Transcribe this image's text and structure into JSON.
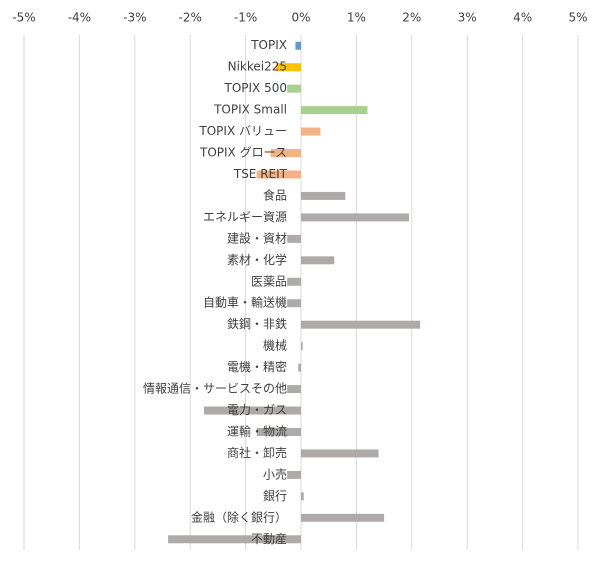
{
  "chart_data": {
    "type": "bar",
    "orientation": "horizontal",
    "categories": [
      "TOPIX",
      "Nikkei225",
      "TOPIX 500",
      "TOPIX Small",
      "TOPIX バリュー",
      "TOPIX グロース",
      "TSE REIT",
      "食品",
      "エネルギー資源",
      "建設・資材",
      "素材・化学",
      "医薬品",
      "自動車・輸送機",
      "鉄鋼・非鉄",
      "機械",
      "電機・精密",
      "情報通信・サービスその他",
      "電力・ガス",
      "運輸・物流",
      "商社・卸売",
      "小売",
      "銀行",
      "金融（除く銀行）",
      "不動産"
    ],
    "values": [
      -0.1,
      -0.45,
      -0.25,
      1.2,
      0.35,
      -0.55,
      -0.8,
      0.8,
      1.95,
      -0.25,
      0.6,
      -0.25,
      -0.25,
      2.15,
      0.03,
      -0.05,
      -0.25,
      -1.75,
      -0.8,
      1.4,
      -0.25,
      0.05,
      1.5,
      -2.4
    ],
    "colors": [
      "#5b9bd5",
      "#ffc000",
      "#a9d18e",
      "#a9d18e",
      "#f4b183",
      "#f4b183",
      "#f4b183",
      "#aeaaaa",
      "#aeaaaa",
      "#aeaaaa",
      "#aeaaaa",
      "#aeaaaa",
      "#aeaaaa",
      "#aeaaaa",
      "#aeaaaa",
      "#aeaaaa",
      "#aeaaaa",
      "#aeaaaa",
      "#aeaaaa",
      "#aeaaaa",
      "#aeaaaa",
      "#aeaaaa",
      "#aeaaaa",
      "#aeaaaa"
    ],
    "xlim": [
      -5,
      5
    ],
    "xticks": [
      {
        "value": -5,
        "label": "-5%"
      },
      {
        "value": -4,
        "label": "-4%"
      },
      {
        "value": -3,
        "label": "-3%"
      },
      {
        "value": -2,
        "label": "-2%"
      },
      {
        "value": -1,
        "label": "-1%"
      },
      {
        "value": 0,
        "label": "0%"
      },
      {
        "value": 1,
        "label": "1%"
      },
      {
        "value": 2,
        "label": "2%"
      },
      {
        "value": 3,
        "label": "3%"
      },
      {
        "value": 4,
        "label": "4%"
      },
      {
        "value": 5,
        "label": "5%"
      }
    ],
    "grid": true
  }
}
